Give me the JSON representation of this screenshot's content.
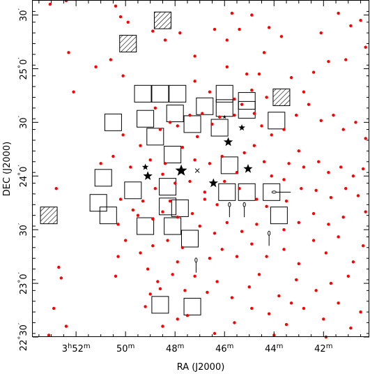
{
  "chart_data": {
    "type": "scatter",
    "xlabel": "RA (J2000)",
    "ylabel": "DEC (J2000)",
    "x_axis_direction": "RA increases to the left",
    "xlim_ra_min": [
      53.75,
      40.15
    ],
    "ylim_dec_arcmin": [
      1350,
      1538
    ],
    "grid": false,
    "legend": "none",
    "colors": {
      "catalog_star": "#ff0000",
      "frame": "#000000",
      "symbol": "#000000"
    },
    "x_ticks": [
      {
        "ra_min": 52,
        "h": "3",
        "m": "52"
      },
      {
        "ra_min": 50,
        "m": "50"
      },
      {
        "ra_min": 48,
        "m": "48"
      },
      {
        "ra_min": 46,
        "m": "46"
      },
      {
        "ra_min": 44,
        "m": "44"
      },
      {
        "ra_min": 42,
        "m": "42"
      }
    ],
    "y_ticks": [
      {
        "dec": 1350,
        "deg": "22",
        "min": "30"
      },
      {
        "dec": 1380,
        "deg": "23",
        "min": "0"
      },
      {
        "dec": 1410,
        "deg": "",
        "min": "30"
      },
      {
        "dec": 1440,
        "deg": "24",
        "min": "0"
      },
      {
        "dec": 1470,
        "deg": "",
        "min": "30"
      },
      {
        "dec": 1500,
        "deg": "25",
        "min": "0"
      },
      {
        "dec": 1530,
        "deg": "",
        "min": "30"
      }
    ],
    "observed_fields": [
      {
        "ra": 49.3,
        "dec": 1486
      },
      {
        "ra": 48.6,
        "dec": 1486
      },
      {
        "ra": 47.9,
        "dec": 1486
      },
      {
        "ra": 46.0,
        "dec": 1486
      },
      {
        "ra": 45.1,
        "dec": 1482
      },
      {
        "ra": 50.5,
        "dec": 1470
      },
      {
        "ra": 49.2,
        "dec": 1472
      },
      {
        "ra": 48.0,
        "dec": 1475
      },
      {
        "ra": 47.3,
        "dec": 1469
      },
      {
        "ra": 46.8,
        "dec": 1479
      },
      {
        "ra": 46.0,
        "dec": 1478
      },
      {
        "ra": 45.1,
        "dec": 1477
      },
      {
        "ra": 46.2,
        "dec": 1467
      },
      {
        "ra": 43.9,
        "dec": 1471
      },
      {
        "ra": 48.8,
        "dec": 1462
      },
      {
        "ra": 48.1,
        "dec": 1452
      },
      {
        "ra": 50.9,
        "dec": 1439
      },
      {
        "ra": 49.7,
        "dec": 1432
      },
      {
        "ra": 48.3,
        "dec": 1434
      },
      {
        "ra": 45.8,
        "dec": 1446
      },
      {
        "ra": 51.1,
        "dec": 1425
      },
      {
        "ra": 50.7,
        "dec": 1418
      },
      {
        "ra": 47.8,
        "dec": 1422
      },
      {
        "ra": 45.9,
        "dec": 1431
      },
      {
        "ra": 45.1,
        "dec": 1431
      },
      {
        "ra": 44.1,
        "dec": 1431
      },
      {
        "ra": 48.3,
        "dec": 1423
      },
      {
        "ra": 49.2,
        "dec": 1412
      },
      {
        "ra": 48.1,
        "dec": 1412
      },
      {
        "ra": 47.4,
        "dec": 1405
      },
      {
        "ra": 43.8,
        "dec": 1418
      },
      {
        "ra": 48.6,
        "dec": 1368
      },
      {
        "ra": 47.3,
        "dec": 1367
      }
    ],
    "hatched_fields": [
      {
        "ra": 48.5,
        "dec": 1527
      },
      {
        "ra": 49.9,
        "dec": 1514
      },
      {
        "ra": 43.7,
        "dec": 1484
      },
      {
        "ra": 53.1,
        "dec": 1418
      }
    ],
    "pleiades_stars": [
      {
        "ra": 47.75,
        "dec": 1443,
        "size": "large"
      },
      {
        "ra": 49.1,
        "dec": 1440,
        "size": "medium"
      },
      {
        "ra": 45.05,
        "dec": 1444,
        "size": "medium"
      },
      {
        "ra": 46.45,
        "dec": 1436,
        "size": "medium"
      },
      {
        "ra": 45.85,
        "dec": 1459,
        "size": "medium"
      },
      {
        "ra": 45.3,
        "dec": 1467,
        "size": "small"
      },
      {
        "ra": 49.2,
        "dec": 1445,
        "size": "small"
      },
      {
        "ra": 46.0,
        "dec": 1473,
        "size": "tiny"
      }
    ],
    "cross_marker": {
      "ra": 47.1,
      "dec": 1443
    },
    "arrows": [
      {
        "ra": 44.0,
        "dec": 1431,
        "dir": "right"
      },
      {
        "ra": 45.8,
        "dec": 1424,
        "dir": "down"
      },
      {
        "ra": 45.2,
        "dec": 1424,
        "dir": "down"
      },
      {
        "ra": 44.2,
        "dec": 1408,
        "dir": "down"
      },
      {
        "ra": 47.15,
        "dec": 1393,
        "dir": "down"
      }
    ],
    "catalog_stars": [
      [
        53.05,
        1536
      ],
      [
        52.4,
        1538
      ],
      [
        52.1,
        1487
      ],
      [
        52.3,
        1509
      ],
      [
        52.8,
        1433
      ],
      [
        52.7,
        1389
      ],
      [
        52.6,
        1383
      ],
      [
        52.4,
        1356
      ],
      [
        52.9,
        1366
      ],
      [
        53.1,
        1351
      ],
      [
        50.4,
        1535
      ],
      [
        50.2,
        1529
      ],
      [
        49.9,
        1526
      ],
      [
        50.6,
        1505
      ],
      [
        51.2,
        1501
      ],
      [
        50.1,
        1496
      ],
      [
        48.9,
        1521
      ],
      [
        48.4,
        1516
      ],
      [
        47.8,
        1520
      ],
      [
        47.2,
        1507
      ],
      [
        46.4,
        1522
      ],
      [
        45.9,
        1516
      ],
      [
        45.7,
        1531
      ],
      [
        45.4,
        1522
      ],
      [
        44.9,
        1530
      ],
      [
        44.4,
        1509
      ],
      [
        44.2,
        1523
      ],
      [
        43.7,
        1518
      ],
      [
        43.3,
        1495
      ],
      [
        42.4,
        1498
      ],
      [
        42.1,
        1520
      ],
      [
        41.4,
        1531
      ],
      [
        40.9,
        1524
      ],
      [
        40.5,
        1527
      ],
      [
        40.3,
        1512
      ],
      [
        41.1,
        1505
      ],
      [
        41.8,
        1504
      ],
      [
        42.8,
        1487
      ],
      [
        45.9,
        1501
      ],
      [
        45.1,
        1497
      ],
      [
        44.6,
        1497
      ],
      [
        44.9,
        1488
      ],
      [
        44.3,
        1484
      ],
      [
        46.6,
        1487
      ],
      [
        47.2,
        1493
      ],
      [
        48.8,
        1478
      ],
      [
        48.2,
        1470
      ],
      [
        48.6,
        1466
      ],
      [
        47.9,
        1468
      ],
      [
        47.4,
        1474
      ],
      [
        46.9,
        1475
      ],
      [
        47.1,
        1462
      ],
      [
        46.5,
        1469
      ],
      [
        46.2,
        1473
      ],
      [
        45.6,
        1474
      ],
      [
        45.6,
        1483
      ],
      [
        45.3,
        1480
      ],
      [
        44.8,
        1475
      ],
      [
        44.5,
        1468
      ],
      [
        44.1,
        1463
      ],
      [
        43.6,
        1466
      ],
      [
        43.1,
        1474
      ],
      [
        42.6,
        1480
      ],
      [
        42.1,
        1471
      ],
      [
        41.6,
        1474
      ],
      [
        41.2,
        1466
      ],
      [
        40.7,
        1470
      ],
      [
        40.3,
        1461
      ],
      [
        43.0,
        1454
      ],
      [
        43.4,
        1447
      ],
      [
        42.8,
        1445
      ],
      [
        42.2,
        1448
      ],
      [
        41.8,
        1442
      ],
      [
        41.3,
        1445
      ],
      [
        40.8,
        1440
      ],
      [
        40.4,
        1444
      ],
      [
        44.8,
        1457
      ],
      [
        45.2,
        1453
      ],
      [
        44.4,
        1448
      ],
      [
        44.1,
        1440
      ],
      [
        43.6,
        1438
      ],
      [
        45.5,
        1442
      ],
      [
        46.1,
        1451
      ],
      [
        46.6,
        1447
      ],
      [
        47.2,
        1449
      ],
      [
        47.7,
        1456
      ],
      [
        48.4,
        1447
      ],
      [
        49.0,
        1449
      ],
      [
        49.8,
        1445
      ],
      [
        50.5,
        1451
      ],
      [
        50.1,
        1463
      ],
      [
        49.4,
        1457
      ],
      [
        51.0,
        1447
      ],
      [
        48.5,
        1441
      ],
      [
        48.0,
        1436
      ],
      [
        48.8,
        1433
      ],
      [
        49.3,
        1426
      ],
      [
        50.2,
        1427
      ],
      [
        49.7,
        1421
      ],
      [
        50.3,
        1413
      ],
      [
        49.5,
        1418
      ],
      [
        48.9,
        1416
      ],
      [
        48.5,
        1420
      ],
      [
        47.9,
        1417
      ],
      [
        47.3,
        1419
      ],
      [
        46.8,
        1427
      ],
      [
        46.3,
        1424
      ],
      [
        46.8,
        1431
      ],
      [
        47.4,
        1437
      ],
      [
        48.2,
        1426
      ],
      [
        46.0,
        1437
      ],
      [
        45.4,
        1433
      ],
      [
        44.7,
        1427
      ],
      [
        44.3,
        1423
      ],
      [
        43.5,
        1426
      ],
      [
        42.9,
        1433
      ],
      [
        42.3,
        1432
      ],
      [
        41.7,
        1428
      ],
      [
        41.1,
        1433
      ],
      [
        40.6,
        1429
      ],
      [
        40.3,
        1420
      ],
      [
        41.2,
        1417
      ],
      [
        41.8,
        1413
      ],
      [
        42.4,
        1419
      ],
      [
        43.0,
        1414
      ],
      [
        43.6,
        1410
      ],
      [
        44.7,
        1413
      ],
      [
        45.3,
        1409
      ],
      [
        45.9,
        1414
      ],
      [
        46.4,
        1408
      ],
      [
        47.0,
        1412
      ],
      [
        47.7,
        1400
      ],
      [
        48.3,
        1404
      ],
      [
        48.9,
        1401
      ],
      [
        49.4,
        1397
      ],
      [
        50.0,
        1404
      ],
      [
        50.3,
        1395
      ],
      [
        49.1,
        1388
      ],
      [
        48.7,
        1381
      ],
      [
        48.1,
        1385
      ],
      [
        47.6,
        1376
      ],
      [
        47.9,
        1392
      ],
      [
        46.6,
        1394
      ],
      [
        46.1,
        1399
      ],
      [
        45.5,
        1395
      ],
      [
        44.9,
        1402
      ],
      [
        44.3,
        1395
      ],
      [
        43.6,
        1399
      ],
      [
        43.0,
        1391
      ],
      [
        42.4,
        1404
      ],
      [
        41.9,
        1397
      ],
      [
        41.4,
        1406
      ],
      [
        40.8,
        1392
      ],
      [
        40.4,
        1401
      ],
      [
        41.0,
        1384
      ],
      [
        41.7,
        1380
      ],
      [
        42.3,
        1376
      ],
      [
        43.1,
        1382
      ],
      [
        43.8,
        1373
      ],
      [
        44.6,
        1385
      ],
      [
        45.0,
        1378
      ],
      [
        45.7,
        1372
      ],
      [
        46.3,
        1381
      ],
      [
        46.7,
        1375
      ],
      [
        44.9,
        1366
      ],
      [
        44.2,
        1363
      ],
      [
        43.5,
        1357
      ],
      [
        42.8,
        1366
      ],
      [
        42.0,
        1360
      ],
      [
        41.4,
        1369
      ],
      [
        40.9,
        1355
      ],
      [
        40.5,
        1364
      ],
      [
        45.6,
        1358
      ],
      [
        46.4,
        1352
      ],
      [
        47.9,
        1360
      ],
      [
        48.5,
        1356
      ],
      [
        49.2,
        1367
      ],
      [
        49.0,
        1374
      ],
      [
        47.2,
        1384
      ],
      [
        43.3,
        1369
      ],
      [
        41.9,
        1350
      ],
      [
        44.0,
        1351
      ],
      [
        48.6,
        1377
      ],
      [
        50.4,
        1384
      ],
      [
        47.5,
        1362
      ]
    ]
  }
}
